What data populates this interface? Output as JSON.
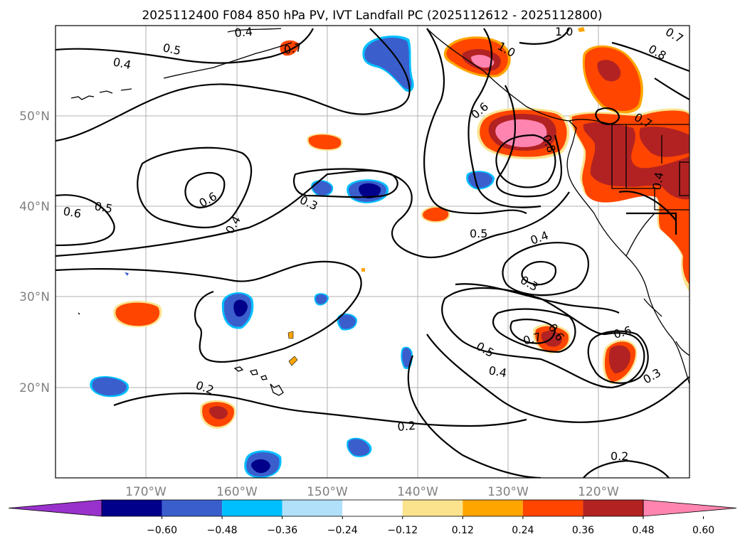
{
  "title": "2025112400 F084 850 hPa PV, IVT Landfall PC (2025112612 - 2025112800)",
  "lat_labels": [
    "50°N",
    "40°N",
    "30°N",
    "20°N"
  ],
  "lon_labels": [
    "170°W",
    "160°W",
    "150°W",
    "140°W",
    "130°W",
    "120°W"
  ],
  "colorbar": {
    "ticks": [
      "−0.60",
      "−0.48",
      "−0.36",
      "−0.24",
      "−0.12",
      "0.12",
      "0.24",
      "0.36",
      "0.48",
      "0.60"
    ],
    "colors": [
      "#9932cc",
      "#00008b",
      "#3a5fcd",
      "#00bfff",
      "#b0e0fa",
      "#ffffff",
      "#fbe38e",
      "#ffa500",
      "#ff4500",
      "#b22222",
      "#ff85b0"
    ]
  },
  "contour_labels": [
    "0.4",
    "0.5",
    "0.4",
    "0.6",
    "0.5",
    "0.6",
    "0.4",
    "0.3",
    "0.2",
    "0.2",
    "1.0",
    "1.0",
    "0.8",
    "0.6",
    "0.8",
    "0.7",
    "0.4",
    "0.5",
    "0.4",
    "0.3",
    "0.5",
    "0.6",
    "0.7",
    "0.6",
    "0.4",
    "0.3",
    "0.2",
    "0.7",
    "0.7"
  ]
}
